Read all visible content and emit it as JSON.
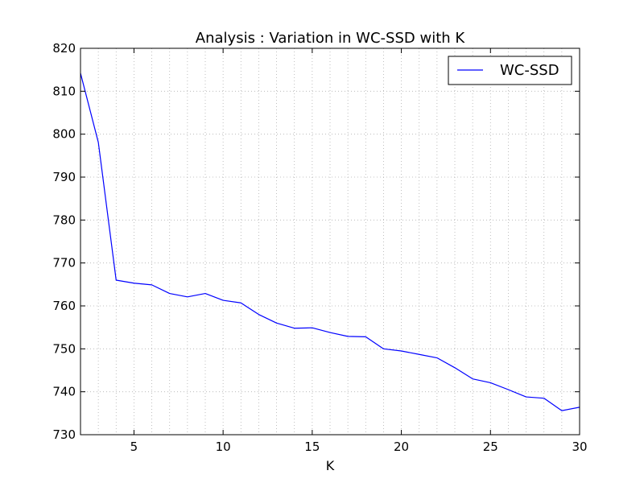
{
  "chart_data": {
    "type": "line",
    "title": "Analysis : Variation in WC-SSD with K",
    "xlabel": "K",
    "ylabel": "",
    "xlim": [
      2,
      30
    ],
    "ylim": [
      730,
      820
    ],
    "xticks": [
      5,
      10,
      15,
      20,
      25,
      30
    ],
    "yticks": [
      730,
      740,
      750,
      760,
      770,
      780,
      790,
      800,
      810,
      820
    ],
    "grid": true,
    "legend_position": "top-right",
    "series": [
      {
        "name": "WC-SSD",
        "color": "#0000ff",
        "x": [
          2,
          3,
          4,
          5,
          6,
          7,
          8,
          9,
          10,
          11,
          12,
          13,
          14,
          15,
          16,
          17,
          18,
          19,
          20,
          21,
          22,
          23,
          24,
          25,
          26,
          27,
          28,
          29,
          30
        ],
        "y": [
          814.2,
          798.1,
          766.0,
          765.3,
          764.9,
          762.9,
          762.1,
          762.9,
          761.3,
          760.7,
          758.0,
          756.0,
          754.8,
          754.9,
          753.8,
          752.9,
          752.8,
          750.0,
          749.5,
          748.7,
          747.9,
          745.6,
          743.0,
          742.1,
          740.5,
          738.8,
          738.5,
          735.6,
          736.4
        ]
      }
    ]
  }
}
